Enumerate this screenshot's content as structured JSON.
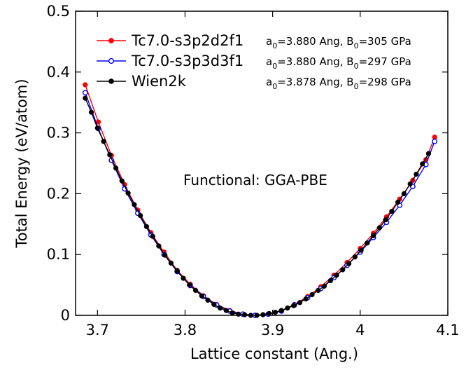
{
  "chart_data": {
    "type": "line",
    "xlabel": "Lattice constant (Ang.)",
    "ylabel": "Total Energy (eV/atom)",
    "xlim": [
      3.675,
      4.1
    ],
    "ylim": [
      0,
      0.5
    ],
    "x_ticks": [
      3.7,
      3.8,
      3.9,
      4.0,
      4.1
    ],
    "x_tick_labels": [
      "3.7",
      "3.8",
      "3.9",
      "4",
      "4.1"
    ],
    "y_ticks": [
      0,
      0.1,
      0.2,
      0.3,
      0.4,
      0.5
    ],
    "y_tick_labels": [
      "0",
      "0.1",
      "0.2",
      "0.3",
      "0.4",
      "0.5"
    ],
    "annotation": "Functional: GGA-PBE",
    "legend_position": "top-left",
    "series": [
      {
        "name": "Tc7.0-s3p2d2f1",
        "fit_text": "a0=3.880 Ang, B0=305 GPa",
        "color": "#ff0000",
        "marker": "filled-circle",
        "x": [
          3.686,
          3.701,
          3.716,
          3.731,
          3.746,
          3.761,
          3.776,
          3.791,
          3.806,
          3.821,
          3.836,
          3.851,
          3.866,
          3.88,
          3.895,
          3.91,
          3.925,
          3.94,
          3.955,
          3.97,
          3.985,
          4.0,
          4.015,
          4.03,
          4.045,
          4.06,
          4.075,
          4.085
        ],
        "y": [
          0.379,
          0.318,
          0.263,
          0.215,
          0.173,
          0.136,
          0.104,
          0.074,
          0.051,
          0.032,
          0.018,
          0.008,
          0.002,
          0.0,
          0.002,
          0.008,
          0.018,
          0.031,
          0.047,
          0.066,
          0.087,
          0.11,
          0.135,
          0.162,
          0.191,
          0.222,
          0.256,
          0.293
        ]
      },
      {
        "name": "Tc7.0-s3p3d3f1",
        "fit_text": "a0=3.880 Ang, B0=297 GPa",
        "color": "#0000ff",
        "marker": "open-circle",
        "x": [
          3.686,
          3.701,
          3.716,
          3.731,
          3.746,
          3.761,
          3.776,
          3.791,
          3.806,
          3.821,
          3.836,
          3.851,
          3.866,
          3.88,
          3.895,
          3.91,
          3.925,
          3.94,
          3.955,
          3.97,
          3.985,
          4.0,
          4.015,
          4.03,
          4.045,
          4.06,
          4.075,
          4.085
        ],
        "y": [
          0.366,
          0.307,
          0.255,
          0.208,
          0.168,
          0.132,
          0.1,
          0.072,
          0.049,
          0.031,
          0.017,
          0.007,
          0.002,
          0.0,
          0.002,
          0.007,
          0.017,
          0.029,
          0.044,
          0.062,
          0.082,
          0.104,
          0.128,
          0.153,
          0.181,
          0.212,
          0.248,
          0.286
        ]
      },
      {
        "name": "Wien2k",
        "fit_text": "a0=3.878 Ang, B0=298 GPa",
        "color": "#000000",
        "marker": "filled-circle",
        "x": [
          3.686,
          3.693,
          3.7,
          3.707,
          3.714,
          3.721,
          3.728,
          3.735,
          3.742,
          3.749,
          3.756,
          3.763,
          3.77,
          3.777,
          3.784,
          3.791,
          3.798,
          3.805,
          3.812,
          3.819,
          3.826,
          3.833,
          3.84,
          3.847,
          3.854,
          3.861,
          3.868,
          3.875,
          3.882,
          3.889,
          3.896,
          3.903,
          3.91,
          3.917,
          3.924,
          3.931,
          3.938,
          3.945,
          3.952,
          3.959,
          3.966,
          3.973,
          3.98,
          3.987,
          3.994,
          4.001,
          4.008,
          4.015,
          4.022,
          4.029,
          4.036,
          4.043,
          4.05,
          4.057,
          4.064,
          4.071,
          4.078
        ],
        "y": [
          0.357,
          0.334,
          0.308,
          0.286,
          0.264,
          0.242,
          0.221,
          0.201,
          0.182,
          0.164,
          0.146,
          0.13,
          0.114,
          0.099,
          0.086,
          0.073,
          0.061,
          0.05,
          0.041,
          0.032,
          0.025,
          0.018,
          0.012,
          0.008,
          0.004,
          0.002,
          0.001,
          0.0,
          0.0,
          0.001,
          0.003,
          0.005,
          0.008,
          0.012,
          0.016,
          0.021,
          0.027,
          0.034,
          0.041,
          0.048,
          0.057,
          0.066,
          0.075,
          0.085,
          0.096,
          0.107,
          0.119,
          0.131,
          0.144,
          0.157,
          0.171,
          0.186,
          0.2,
          0.216,
          0.232,
          0.249,
          0.266
        ]
      }
    ]
  }
}
